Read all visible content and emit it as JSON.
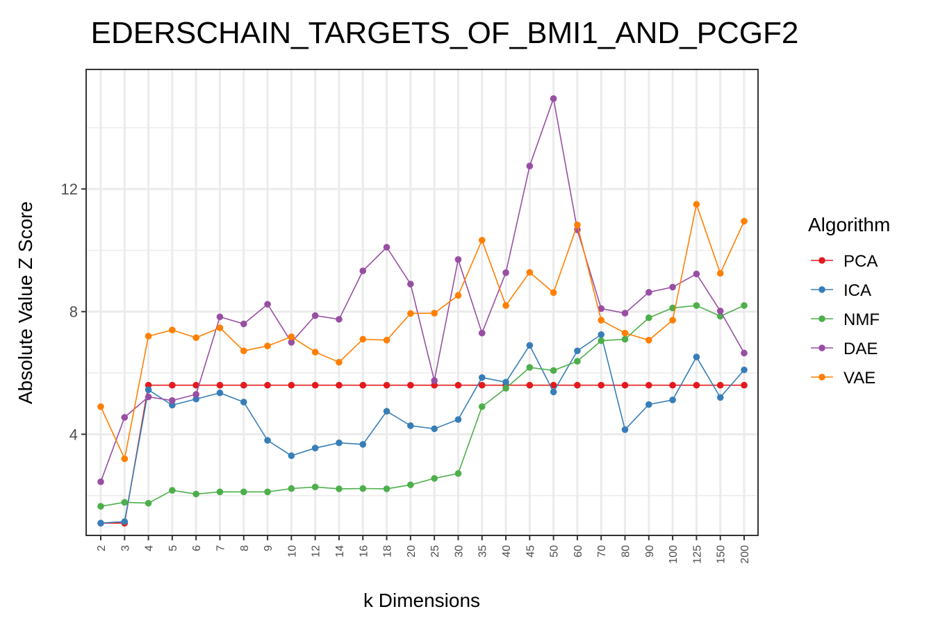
{
  "chart_data": {
    "type": "line",
    "title": "EDERSCHAIN_TARGETS_OF_BMI1_AND_PCGF2",
    "xlabel": "k Dimensions",
    "ylabel": "Absolute Value Z Score",
    "categories": [
      "2",
      "3",
      "4",
      "5",
      "6",
      "7",
      "8",
      "9",
      "10",
      "12",
      "14",
      "16",
      "18",
      "20",
      "25",
      "30",
      "35",
      "40",
      "45",
      "50",
      "60",
      "70",
      "80",
      "90",
      "100",
      "125",
      "150",
      "200"
    ],
    "y_ticks": [
      4,
      8,
      12
    ],
    "ylim": [
      0.7,
      15.9
    ],
    "grid": true,
    "legend": {
      "title": "Algorithm",
      "position": "right"
    },
    "series": [
      {
        "name": "PCA",
        "color": "#e41a1c",
        "values": [
          1.1,
          1.1,
          5.6,
          5.6,
          5.6,
          5.6,
          5.6,
          5.6,
          5.6,
          5.6,
          5.6,
          5.6,
          5.6,
          5.6,
          5.6,
          5.6,
          5.6,
          5.6,
          5.6,
          5.6,
          5.6,
          5.6,
          5.6,
          5.6,
          5.6,
          5.6,
          5.6,
          5.6
        ]
      },
      {
        "name": "ICA",
        "color": "#377eb8",
        "values": [
          1.1,
          1.15,
          5.45,
          4.95,
          5.15,
          5.35,
          5.05,
          3.8,
          3.3,
          3.55,
          3.72,
          3.67,
          4.75,
          4.28,
          4.18,
          4.48,
          5.85,
          5.7,
          6.9,
          5.38,
          6.72,
          7.25,
          4.15,
          4.97,
          5.12,
          6.52,
          5.2,
          6.1
        ]
      },
      {
        "name": "NMF",
        "color": "#4daf4a",
        "values": [
          1.65,
          1.78,
          1.75,
          2.17,
          2.05,
          2.12,
          2.12,
          2.12,
          2.23,
          2.28,
          2.22,
          2.23,
          2.22,
          2.35,
          2.56,
          2.72,
          4.9,
          5.5,
          6.18,
          6.08,
          6.38,
          7.05,
          7.1,
          7.8,
          8.12,
          8.2,
          7.85,
          8.2
        ]
      },
      {
        "name": "DAE",
        "color": "#984ea3",
        "values": [
          2.45,
          4.55,
          5.22,
          5.1,
          5.3,
          7.83,
          7.6,
          8.24,
          7.0,
          7.87,
          7.75,
          9.33,
          10.1,
          8.9,
          5.75,
          9.7,
          7.3,
          9.27,
          12.75,
          14.95,
          10.67,
          8.1,
          7.95,
          8.63,
          8.8,
          9.23,
          8.02,
          6.65
        ]
      },
      {
        "name": "VAE",
        "color": "#ff7f00",
        "values": [
          4.9,
          3.2,
          7.2,
          7.4,
          7.15,
          7.47,
          6.72,
          6.88,
          7.18,
          6.68,
          6.35,
          7.1,
          7.07,
          7.94,
          7.95,
          8.53,
          10.33,
          8.2,
          9.28,
          8.62,
          10.83,
          7.72,
          7.3,
          7.07,
          7.72,
          11.5,
          9.25,
          10.95
        ]
      }
    ]
  }
}
